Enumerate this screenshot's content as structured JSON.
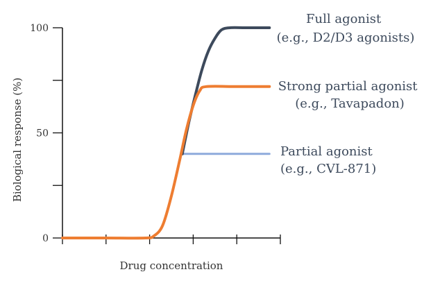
{
  "chart_data": {
    "type": "line",
    "title": "",
    "xlabel": "Drug concentration",
    "ylabel": "Biological response (%)",
    "ylim": [
      0,
      100
    ],
    "xlim": [
      0,
      5
    ],
    "y_ticks": [
      0,
      25,
      50,
      75,
      100
    ],
    "y_tick_labels": [
      "0",
      "",
      "50",
      "",
      "100"
    ],
    "x_ticks": [
      0,
      1,
      2,
      3,
      4,
      5
    ],
    "grid": false,
    "series": [
      {
        "name": "Full agonist",
        "label_lines": [
          "Full agonist",
          "(e.g., D2/D3 agonists)"
        ],
        "color": "#3d4a5c",
        "x": [
          2.75,
          2.9,
          3.05,
          3.2,
          3.35,
          3.5,
          3.65,
          3.85,
          4.2,
          4.75
        ],
        "values": [
          40,
          55,
          68,
          80,
          89,
          95,
          99,
          100,
          100,
          100
        ]
      },
      {
        "name": "Strong partial agonist",
        "label_lines": [
          "Strong partial agonist",
          "(e.g., Tavapadon)"
        ],
        "color": "#ee7d31",
        "x": [
          0,
          1.0,
          1.9,
          2.1,
          2.3,
          2.5,
          2.7,
          2.85,
          3.0,
          3.15,
          3.3,
          4.0,
          4.75
        ],
        "values": [
          0,
          0,
          0,
          1,
          6,
          20,
          38,
          52,
          63,
          70,
          72,
          72,
          72
        ]
      },
      {
        "name": "Partial agonist",
        "label_lines": [
          "Partial agonist",
          "(e.g., CVL-871)"
        ],
        "color": "#8eaadb",
        "x": [
          2.75,
          4.75
        ],
        "values": [
          40,
          40
        ]
      }
    ]
  }
}
